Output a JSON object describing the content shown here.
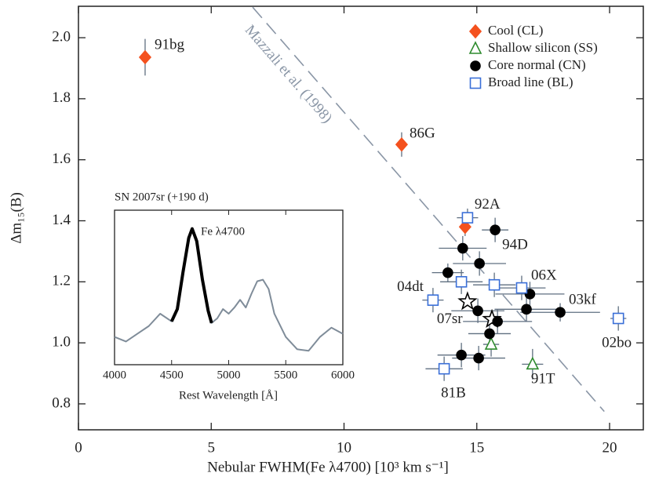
{
  "chart_data": [
    {
      "type": "scatter",
      "xlabel": "Nebular FWHM(Fe λ4700)   [10³ km s⁻¹]",
      "ylabel": "Δm₁₅(B)",
      "xlim": [
        0,
        21.27
      ],
      "ylim": [
        0.715,
        2.103
      ],
      "xticks": [
        0,
        5,
        10,
        15,
        20
      ],
      "yticks": [
        0.8,
        {
          "value": 1,
          "label": "1.0"
        },
        1.2,
        1.4,
        1.6,
        1.8,
        {
          "value": 2,
          "label": "2.0"
        }
      ],
      "legend": "upper right",
      "reference_line": {
        "label": "Mazzali et al. (1998)",
        "color": "#8a96a6",
        "x": [
          6.56,
          19.8
        ],
        "y": [
          2.1,
          0.775
        ]
      },
      "series": [
        {
          "name": "Cool (CL)",
          "color": "#f4511e",
          "marker": "diamond",
          "x": [
            2.51,
            12.17,
            14.56
          ],
          "values": [
            1.936,
            1.65,
            1.38
          ],
          "xerr": [
            0.2,
            0.2,
            0.2
          ],
          "yerr": [
            0.06,
            0.04,
            0.03
          ],
          "point_labels": [
            "91bg",
            "86G",
            null
          ]
        },
        {
          "name": "Shallow silicon (SS)",
          "color": "#2e8b2e",
          "marker": "triangle",
          "x": [
            15.54,
            17.1
          ],
          "values": [
            0.995,
            0.93
          ],
          "xerr": [
            0.3,
            0.4
          ],
          "yerr": [
            0.04,
            0.05
          ],
          "point_labels": [
            null,
            "91T"
          ]
        },
        {
          "name": "Core normal (CN)",
          "color": "#000000",
          "marker": "circle",
          "x": [
            14.47,
            15.69,
            13.91,
            15.1,
            17.0,
            16.87,
            18.14,
            15.04,
            15.48,
            15.78,
            14.42,
            15.07
          ],
          "values": [
            1.31,
            1.37,
            1.23,
            1.26,
            1.16,
            1.11,
            1.1,
            1.105,
            1.03,
            1.07,
            0.96,
            0.95
          ],
          "xerr": [
            0.9,
            0.5,
            0.6,
            1.0,
            1.3,
            1.2,
            1.5,
            1.0,
            0.8,
            1.3,
            0.9,
            1.0
          ],
          "yerr": [
            0.04,
            0.04,
            0.03,
            0.04,
            0.04,
            0.04,
            0.03,
            0.04,
            0.04,
            0.04,
            0.04,
            0.04
          ],
          "point_labels": [
            null,
            "94D",
            null,
            null,
            null,
            null,
            "03kf",
            null,
            null,
            null,
            null,
            null
          ]
        },
        {
          "name": "Broad line (BL)",
          "color": "#3a6fd8",
          "marker": "square",
          "x": [
            14.65,
            14.42,
            15.66,
            16.69,
            13.35,
            20.33,
            13.77
          ],
          "values": [
            1.41,
            1.2,
            1.19,
            1.18,
            1.14,
            1.08,
            0.915
          ],
          "xerr": [
            0.4,
            0.8,
            0.8,
            0.9,
            0.4,
            0.3,
            0.7
          ],
          "yerr": [
            0.03,
            0.04,
            0.04,
            0.04,
            0.04,
            0.04,
            0.04
          ],
          "point_labels": [
            "92A",
            null,
            null,
            "06X",
            "04dt",
            "02bo",
            "81B"
          ]
        },
        {
          "color": "#000000",
          "marker": "star",
          "x": [
            14.65,
            15.57
          ],
          "values": [
            1.135,
            1.077
          ],
          "point_labels": [
            "07sr",
            null
          ]
        }
      ]
    },
    {
      "type": "line",
      "title": "SN 2007sr (+190 d)",
      "xlabel": "Rest Wavelength  [Å]",
      "annotation": "Fe λ4700",
      "xlim": [
        4000,
        6000
      ],
      "ylim": [
        0,
        1
      ],
      "xticks": [
        4000,
        4500,
        5000,
        5500,
        6000
      ],
      "x": [
        4000,
        4100,
        4200,
        4300,
        4400,
        4500,
        4550,
        4600,
        4650,
        4680,
        4720,
        4770,
        4820,
        4850,
        4900,
        4950,
        5000,
        5050,
        5100,
        5150,
        5200,
        5250,
        5300,
        5350,
        5400,
        5500,
        5600,
        5700,
        5800,
        5900,
        6000
      ],
      "series": [
        {
          "color": "#7f8c99",
          "values": [
            0.18,
            0.15,
            0.2,
            0.25,
            0.33,
            0.28,
            0.36,
            0.6,
            0.82,
            0.88,
            0.8,
            0.55,
            0.35,
            0.27,
            0.3,
            0.36,
            0.33,
            0.37,
            0.42,
            0.37,
            0.46,
            0.54,
            0.55,
            0.49,
            0.33,
            0.18,
            0.1,
            0.09,
            0.18,
            0.24,
            0.2
          ]
        },
        {
          "color": "#000000",
          "values": [
            null,
            null,
            null,
            null,
            null,
            0.28,
            0.36,
            0.6,
            0.82,
            0.88,
            0.8,
            0.55,
            0.35,
            0.27,
            null,
            null,
            null,
            null,
            null,
            null,
            null,
            null,
            null,
            null,
            null,
            null,
            null,
            null,
            null,
            null,
            null
          ]
        }
      ]
    }
  ]
}
